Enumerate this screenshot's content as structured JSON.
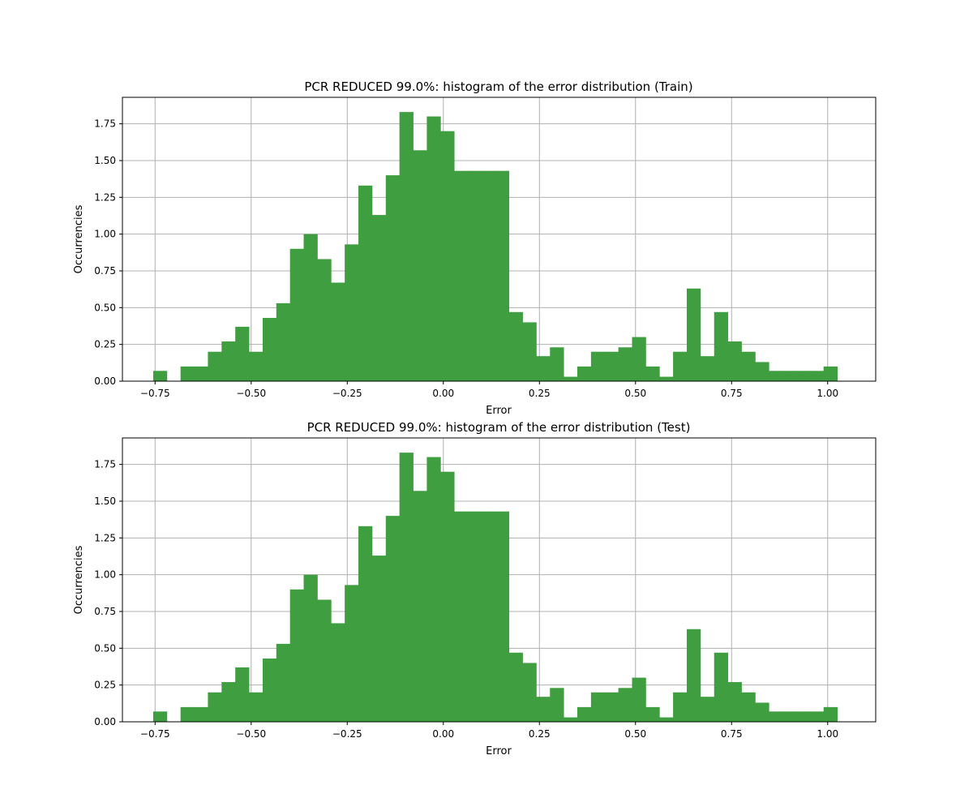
{
  "chart_data": [
    {
      "type": "bar",
      "title": "PCR REDUCED 99.0%: histogram of the error distribution (Train)",
      "xlabel": "Error",
      "ylabel": "Occurrencies",
      "xlim": [
        -0.835,
        1.125
      ],
      "ylim": [
        0,
        1.93
      ],
      "xticks": [
        -0.75,
        -0.5,
        -0.25,
        0.0,
        0.25,
        0.5,
        0.75,
        1.0
      ],
      "xtick_labels": [
        "−0.75",
        "−0.50",
        "−0.25",
        "0.00",
        "0.25",
        "0.50",
        "0.75",
        "1.00"
      ],
      "yticks": [
        0.0,
        0.25,
        0.5,
        0.75,
        1.0,
        1.25,
        1.5,
        1.75
      ],
      "ytick_labels": [
        "0.00",
        "0.25",
        "0.50",
        "0.75",
        "1.00",
        "1.25",
        "1.50",
        "1.75"
      ],
      "grid": true,
      "color": "#3f9e3f",
      "bin_start": -0.755,
      "bin_width": 0.0356,
      "values": [
        0.07,
        0.0,
        0.1,
        0.1,
        0.2,
        0.27,
        0.37,
        0.2,
        0.43,
        0.53,
        0.9,
        1.0,
        0.83,
        0.67,
        0.93,
        1.33,
        1.13,
        1.4,
        1.83,
        1.57,
        1.8,
        1.7,
        1.43,
        1.43,
        1.43,
        1.43,
        0.47,
        0.4,
        0.17,
        0.23,
        0.03,
        0.1,
        0.2,
        0.2,
        0.23,
        0.3,
        0.1,
        0.03,
        0.2,
        0.63,
        0.17,
        0.47,
        0.27,
        0.2,
        0.13,
        0.07,
        0.07,
        0.07,
        0.07,
        0.1
      ]
    },
    {
      "type": "bar",
      "title": "PCR REDUCED 99.0%: histogram of the error distribution (Test)",
      "xlabel": "Error",
      "ylabel": "Occurrencies",
      "xlim": [
        -0.835,
        1.125
      ],
      "ylim": [
        0,
        1.93
      ],
      "xticks": [
        -0.75,
        -0.5,
        -0.25,
        0.0,
        0.25,
        0.5,
        0.75,
        1.0
      ],
      "xtick_labels": [
        "−0.75",
        "−0.50",
        "−0.25",
        "0.00",
        "0.25",
        "0.50",
        "0.75",
        "1.00"
      ],
      "yticks": [
        0.0,
        0.25,
        0.5,
        0.75,
        1.0,
        1.25,
        1.5,
        1.75
      ],
      "ytick_labels": [
        "0.00",
        "0.25",
        "0.50",
        "0.75",
        "1.00",
        "1.25",
        "1.50",
        "1.75"
      ],
      "grid": true,
      "color": "#3f9e3f",
      "bin_start": -0.755,
      "bin_width": 0.0356,
      "values": [
        0.07,
        0.0,
        0.1,
        0.1,
        0.2,
        0.27,
        0.37,
        0.2,
        0.43,
        0.53,
        0.9,
        1.0,
        0.83,
        0.67,
        0.93,
        1.33,
        1.13,
        1.4,
        1.83,
        1.57,
        1.8,
        1.7,
        1.43,
        1.43,
        1.43,
        1.43,
        0.47,
        0.4,
        0.17,
        0.23,
        0.03,
        0.1,
        0.2,
        0.2,
        0.23,
        0.3,
        0.1,
        0.03,
        0.2,
        0.63,
        0.17,
        0.47,
        0.27,
        0.2,
        0.13,
        0.07,
        0.07,
        0.07,
        0.07,
        0.1
      ]
    }
  ]
}
